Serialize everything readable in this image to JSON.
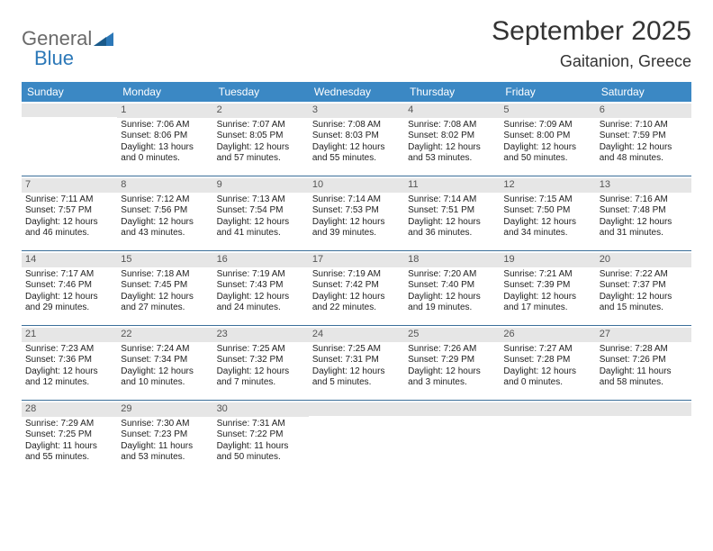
{
  "logo": {
    "word1": "General",
    "word2": "Blue"
  },
  "title": "September 2025",
  "location": "Gaitanion, Greece",
  "colors": {
    "header_bg": "#3b88c4",
    "header_text": "#ffffff",
    "daynum_bg": "#e6e6e6",
    "row_border": "#3b6f9a",
    "logo_gray": "#6a6a6a",
    "logo_blue": "#2c78b8"
  },
  "day_names": [
    "Sunday",
    "Monday",
    "Tuesday",
    "Wednesday",
    "Thursday",
    "Friday",
    "Saturday"
  ],
  "weeks": [
    [
      {
        "n": "",
        "sunrise": "",
        "sunset": "",
        "day": ""
      },
      {
        "n": "1",
        "sunrise": "Sunrise: 7:06 AM",
        "sunset": "Sunset: 8:06 PM",
        "day": "Daylight: 13 hours and 0 minutes."
      },
      {
        "n": "2",
        "sunrise": "Sunrise: 7:07 AM",
        "sunset": "Sunset: 8:05 PM",
        "day": "Daylight: 12 hours and 57 minutes."
      },
      {
        "n": "3",
        "sunrise": "Sunrise: 7:08 AM",
        "sunset": "Sunset: 8:03 PM",
        "day": "Daylight: 12 hours and 55 minutes."
      },
      {
        "n": "4",
        "sunrise": "Sunrise: 7:08 AM",
        "sunset": "Sunset: 8:02 PM",
        "day": "Daylight: 12 hours and 53 minutes."
      },
      {
        "n": "5",
        "sunrise": "Sunrise: 7:09 AM",
        "sunset": "Sunset: 8:00 PM",
        "day": "Daylight: 12 hours and 50 minutes."
      },
      {
        "n": "6",
        "sunrise": "Sunrise: 7:10 AM",
        "sunset": "Sunset: 7:59 PM",
        "day": "Daylight: 12 hours and 48 minutes."
      }
    ],
    [
      {
        "n": "7",
        "sunrise": "Sunrise: 7:11 AM",
        "sunset": "Sunset: 7:57 PM",
        "day": "Daylight: 12 hours and 46 minutes."
      },
      {
        "n": "8",
        "sunrise": "Sunrise: 7:12 AM",
        "sunset": "Sunset: 7:56 PM",
        "day": "Daylight: 12 hours and 43 minutes."
      },
      {
        "n": "9",
        "sunrise": "Sunrise: 7:13 AM",
        "sunset": "Sunset: 7:54 PM",
        "day": "Daylight: 12 hours and 41 minutes."
      },
      {
        "n": "10",
        "sunrise": "Sunrise: 7:14 AM",
        "sunset": "Sunset: 7:53 PM",
        "day": "Daylight: 12 hours and 39 minutes."
      },
      {
        "n": "11",
        "sunrise": "Sunrise: 7:14 AM",
        "sunset": "Sunset: 7:51 PM",
        "day": "Daylight: 12 hours and 36 minutes."
      },
      {
        "n": "12",
        "sunrise": "Sunrise: 7:15 AM",
        "sunset": "Sunset: 7:50 PM",
        "day": "Daylight: 12 hours and 34 minutes."
      },
      {
        "n": "13",
        "sunrise": "Sunrise: 7:16 AM",
        "sunset": "Sunset: 7:48 PM",
        "day": "Daylight: 12 hours and 31 minutes."
      }
    ],
    [
      {
        "n": "14",
        "sunrise": "Sunrise: 7:17 AM",
        "sunset": "Sunset: 7:46 PM",
        "day": "Daylight: 12 hours and 29 minutes."
      },
      {
        "n": "15",
        "sunrise": "Sunrise: 7:18 AM",
        "sunset": "Sunset: 7:45 PM",
        "day": "Daylight: 12 hours and 27 minutes."
      },
      {
        "n": "16",
        "sunrise": "Sunrise: 7:19 AM",
        "sunset": "Sunset: 7:43 PM",
        "day": "Daylight: 12 hours and 24 minutes."
      },
      {
        "n": "17",
        "sunrise": "Sunrise: 7:19 AM",
        "sunset": "Sunset: 7:42 PM",
        "day": "Daylight: 12 hours and 22 minutes."
      },
      {
        "n": "18",
        "sunrise": "Sunrise: 7:20 AM",
        "sunset": "Sunset: 7:40 PM",
        "day": "Daylight: 12 hours and 19 minutes."
      },
      {
        "n": "19",
        "sunrise": "Sunrise: 7:21 AM",
        "sunset": "Sunset: 7:39 PM",
        "day": "Daylight: 12 hours and 17 minutes."
      },
      {
        "n": "20",
        "sunrise": "Sunrise: 7:22 AM",
        "sunset": "Sunset: 7:37 PM",
        "day": "Daylight: 12 hours and 15 minutes."
      }
    ],
    [
      {
        "n": "21",
        "sunrise": "Sunrise: 7:23 AM",
        "sunset": "Sunset: 7:36 PM",
        "day": "Daylight: 12 hours and 12 minutes."
      },
      {
        "n": "22",
        "sunrise": "Sunrise: 7:24 AM",
        "sunset": "Sunset: 7:34 PM",
        "day": "Daylight: 12 hours and 10 minutes."
      },
      {
        "n": "23",
        "sunrise": "Sunrise: 7:25 AM",
        "sunset": "Sunset: 7:32 PM",
        "day": "Daylight: 12 hours and 7 minutes."
      },
      {
        "n": "24",
        "sunrise": "Sunrise: 7:25 AM",
        "sunset": "Sunset: 7:31 PM",
        "day": "Daylight: 12 hours and 5 minutes."
      },
      {
        "n": "25",
        "sunrise": "Sunrise: 7:26 AM",
        "sunset": "Sunset: 7:29 PM",
        "day": "Daylight: 12 hours and 3 minutes."
      },
      {
        "n": "26",
        "sunrise": "Sunrise: 7:27 AM",
        "sunset": "Sunset: 7:28 PM",
        "day": "Daylight: 12 hours and 0 minutes."
      },
      {
        "n": "27",
        "sunrise": "Sunrise: 7:28 AM",
        "sunset": "Sunset: 7:26 PM",
        "day": "Daylight: 11 hours and 58 minutes."
      }
    ],
    [
      {
        "n": "28",
        "sunrise": "Sunrise: 7:29 AM",
        "sunset": "Sunset: 7:25 PM",
        "day": "Daylight: 11 hours and 55 minutes."
      },
      {
        "n": "29",
        "sunrise": "Sunrise: 7:30 AM",
        "sunset": "Sunset: 7:23 PM",
        "day": "Daylight: 11 hours and 53 minutes."
      },
      {
        "n": "30",
        "sunrise": "Sunrise: 7:31 AM",
        "sunset": "Sunset: 7:22 PM",
        "day": "Daylight: 11 hours and 50 minutes."
      },
      {
        "n": "",
        "sunrise": "",
        "sunset": "",
        "day": ""
      },
      {
        "n": "",
        "sunrise": "",
        "sunset": "",
        "day": ""
      },
      {
        "n": "",
        "sunrise": "",
        "sunset": "",
        "day": ""
      },
      {
        "n": "",
        "sunrise": "",
        "sunset": "",
        "day": ""
      }
    ]
  ]
}
